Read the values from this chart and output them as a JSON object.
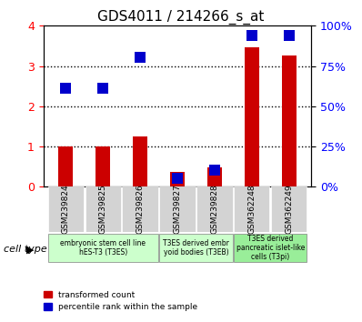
{
  "title": "GDS4011 / 214266_s_at",
  "samples": [
    "GSM239824",
    "GSM239825",
    "GSM239826",
    "GSM239827",
    "GSM239828",
    "GSM362248",
    "GSM362249"
  ],
  "transformed_count": [
    1.0,
    1.0,
    1.25,
    0.38,
    0.48,
    3.46,
    3.27
  ],
  "percentile_rank": [
    2.45,
    2.45,
    3.22,
    0.2,
    0.42,
    3.76,
    3.76
  ],
  "red_color": "#cc0000",
  "blue_color": "#0000cc",
  "ylim_left": [
    0,
    4
  ],
  "ylim_right": [
    0,
    100
  ],
  "yticks_left": [
    0,
    1,
    2,
    3,
    4
  ],
  "yticks_right": [
    0,
    25,
    50,
    75,
    100
  ],
  "ytick_labels_right": [
    "0%",
    "25%",
    "50%",
    "75%",
    "100%"
  ],
  "dotted_lines": [
    1,
    2,
    3
  ],
  "cell_types": [
    {
      "label": "embryonic stem cell line\nhES-T3 (T3ES)",
      "samples": [
        0,
        1,
        2
      ],
      "color": "#ccffcc"
    },
    {
      "label": "T3ES derived embr\nyoid bodies (T3EB)",
      "samples": [
        3,
        4
      ],
      "color": "#ccffcc"
    },
    {
      "label": "T3ES derived\npancreatic islet-like\ncells (T3pi)",
      "samples": [
        5,
        6
      ],
      "color": "#99ff99"
    }
  ],
  "legend_labels": [
    "transformed count",
    "percentile rank within the sample"
  ],
  "cell_type_label": "cell type",
  "bar_width": 0.4,
  "blue_marker_size": 8,
  "xlabel_fontsize": 7,
  "title_fontsize": 11
}
